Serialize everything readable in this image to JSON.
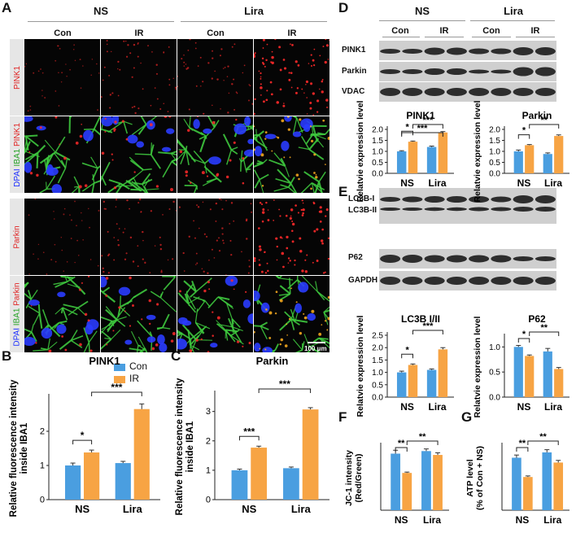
{
  "panel_letters": {
    "A": "A",
    "B": "B",
    "C": "C",
    "D": "D",
    "E": "E",
    "F": "F",
    "G": "G"
  },
  "panelA": {
    "groups": [
      "NS",
      "Lira"
    ],
    "conditions": [
      "Con",
      "IR",
      "Con",
      "IR"
    ],
    "row_labels": {
      "r1": [
        "PINK1"
      ],
      "r2": [
        "DPAI",
        "IBA1",
        "PINK1"
      ],
      "r3": [
        "Parkin"
      ],
      "r4": [
        "DPAI",
        "IBA1",
        "Parkin"
      ]
    },
    "scale_bar": "100 μm",
    "colors": {
      "red": "#ff2a2a",
      "green": "#3ec83e",
      "blue": "#2a3cff"
    }
  },
  "panelD": {
    "groups": [
      "NS",
      "Lira"
    ],
    "conditions": [
      "Con",
      "IR",
      "Con",
      "IR"
    ],
    "blot_labels": [
      "PINK1",
      "Parkin",
      "VDAC"
    ]
  },
  "panelE": {
    "blot_labels": [
      "LC3B-I",
      "LC3B-II",
      "P62",
      "GAPDH"
    ]
  },
  "legend": [
    {
      "label": "Con",
      "color": "#4a9ee0"
    },
    {
      "label": "IR",
      "color": "#f7a444"
    }
  ],
  "chart_data": [
    {
      "id": "B",
      "type": "bar",
      "title": "PINK1",
      "ylabel": "Relative fluorescence intensity inside IBA1",
      "categories": [
        "NS",
        "Lira"
      ],
      "series": [
        {
          "name": "Con",
          "values": [
            1.0,
            1.07
          ],
          "errors": [
            0.07,
            0.05
          ]
        },
        {
          "name": "IR",
          "values": [
            1.38,
            2.65
          ],
          "errors": [
            0.07,
            0.15
          ]
        }
      ],
      "ylim": [
        0,
        3
      ],
      "yticks": [
        "0",
        "1",
        "2"
      ],
      "sig": [
        "*",
        "***"
      ]
    },
    {
      "id": "C",
      "type": "bar",
      "title": "Parkin",
      "ylabel": "Relative fluorescence intensity inside IBA1",
      "categories": [
        "NS",
        "Lira"
      ],
      "series": [
        {
          "name": "Con",
          "values": [
            1.0,
            1.07
          ],
          "errors": [
            0.04,
            0.04
          ]
        },
        {
          "name": "IR",
          "values": [
            1.77,
            3.07
          ],
          "errors": [
            0.05,
            0.06
          ]
        }
      ],
      "ylim": [
        0,
        3.6
      ],
      "yticks": [
        "0",
        "1",
        "2",
        "3"
      ],
      "sig": [
        "***",
        "***"
      ]
    },
    {
      "id": "D1",
      "type": "bar",
      "title": "PINK1",
      "ylabel": "Relatvie expression level",
      "categories": [
        "NS",
        "Lira"
      ],
      "series": [
        {
          "name": "Con",
          "values": [
            1.0,
            1.2
          ],
          "errors": [
            0.03,
            0.04
          ]
        },
        {
          "name": "IR",
          "values": [
            1.44,
            1.86
          ],
          "errors": [
            0.03,
            0.04
          ]
        }
      ],
      "ylim": [
        0,
        2.0
      ],
      "yticks": [
        "0.0",
        "0.5",
        "1.0",
        "1.5",
        "2.0"
      ],
      "sig": [
        "*",
        "***",
        "***"
      ]
    },
    {
      "id": "D2",
      "type": "bar",
      "title": "Parkin",
      "ylabel": "Relatvie expression level",
      "categories": [
        "NS",
        "Lira"
      ],
      "series": [
        {
          "name": "Con",
          "values": [
            1.0,
            0.88
          ],
          "errors": [
            0.06,
            0.05
          ]
        },
        {
          "name": "IR",
          "values": [
            1.28,
            1.7
          ],
          "errors": [
            0.03,
            0.05
          ]
        }
      ],
      "ylim": [
        0,
        2.0
      ],
      "yticks": [
        "0.0",
        "0.5",
        "1.0",
        "1.5",
        "2.0"
      ],
      "sig": [
        "*",
        "**"
      ]
    },
    {
      "id": "E1",
      "type": "bar",
      "title": "LC3B I/II",
      "ylabel": "Relatvie expression level",
      "categories": [
        "NS",
        "Lira"
      ],
      "series": [
        {
          "name": "Con",
          "values": [
            1.0,
            1.1
          ],
          "errors": [
            0.05,
            0.04
          ]
        },
        {
          "name": "IR",
          "values": [
            1.3,
            1.93
          ],
          "errors": [
            0.04,
            0.07
          ]
        }
      ],
      "ylim": [
        0,
        2.5
      ],
      "yticks": [
        "0.0",
        "0.5",
        "1.0",
        "1.5",
        "2.0",
        "2.5"
      ],
      "sig": [
        "*",
        "***"
      ]
    },
    {
      "id": "E2",
      "type": "bar",
      "title": "P62",
      "ylabel": "Relatvie expression level",
      "categories": [
        "NS",
        "Lira"
      ],
      "series": [
        {
          "name": "Con",
          "values": [
            1.0,
            0.91
          ],
          "errors": [
            0.03,
            0.06
          ]
        },
        {
          "name": "IR",
          "values": [
            0.82,
            0.56
          ],
          "errors": [
            0.02,
            0.03
          ]
        }
      ],
      "ylim": [
        0,
        1.2
      ],
      "yticks": [
        "0.0",
        "0.5",
        "1.0"
      ],
      "sig": [
        "*",
        "**"
      ]
    },
    {
      "id": "F",
      "type": "bar",
      "title": "",
      "ylabel": "JC-1 intensity (Red/Green)",
      "categories": [
        "NS",
        "Lira"
      ],
      "series": [
        {
          "name": "Con",
          "values": [
            1.32,
            1.38
          ],
          "errors": [
            0.08,
            0.05
          ]
        },
        {
          "name": "IR",
          "values": [
            0.87,
            1.29
          ],
          "errors": [
            0.02,
            0.05
          ]
        }
      ],
      "ylim": [
        0,
        1.5
      ],
      "yticks": [],
      "sig": [
        "**",
        "**"
      ]
    },
    {
      "id": "G",
      "type": "bar",
      "title": "",
      "ylabel": "ATP level (% of Con + NS)",
      "categories": [
        "NS",
        "Lira"
      ],
      "series": [
        {
          "name": "Con",
          "values": [
            98,
            108
          ],
          "errors": [
            5,
            5
          ]
        },
        {
          "name": "IR",
          "values": [
            62,
            89
          ],
          "errors": [
            2,
            4
          ]
        }
      ],
      "ylim": [
        0,
        120
      ],
      "yticks": [],
      "sig": [
        "**",
        "**"
      ]
    }
  ]
}
